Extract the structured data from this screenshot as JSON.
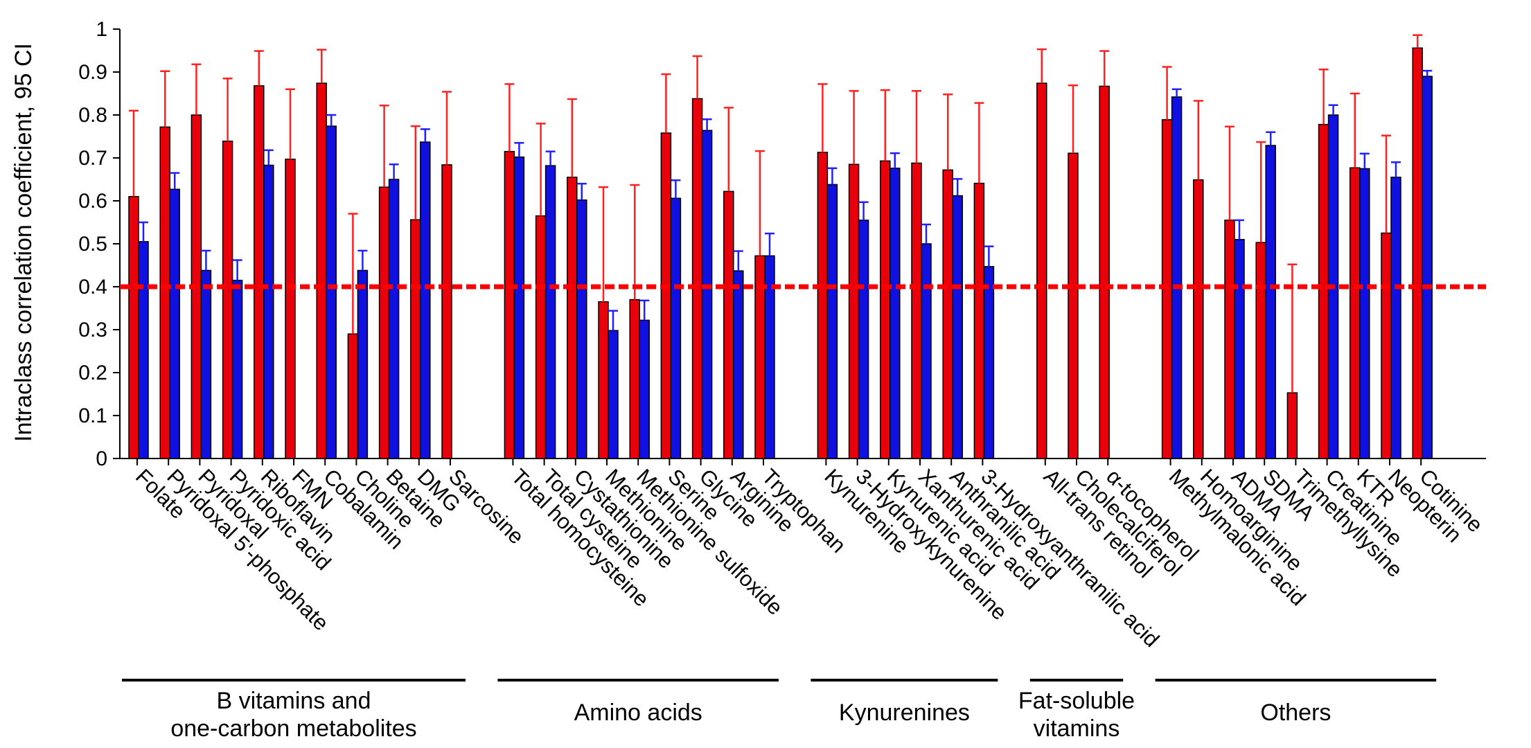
{
  "chart_data": {
    "type": "bar",
    "title": "",
    "ylabel": "Intraclass correlation coefficient, 95 CI",
    "xlabel": "",
    "ylim": [
      0,
      1
    ],
    "yticks": [
      "0",
      "0.1",
      "0.2",
      "0.3",
      "0.4",
      "0.5",
      "0.6",
      "0.7",
      "0.8",
      "0.9",
      "1"
    ],
    "grid": false,
    "legend": "none",
    "reference_line": {
      "y": 0.4,
      "color": "#ff0000",
      "style": "dashed"
    },
    "series_colors": {
      "red": "#e8000b",
      "blue": "#1010e0"
    },
    "errorbar_colors": {
      "red": "#ff2020",
      "blue": "#2020ff"
    },
    "groups": [
      {
        "label": [
          "B vitamins and",
          "one-carbon metabolites"
        ],
        "items": [
          {
            "name": "Folate",
            "red": [
              0.61,
              0.81
            ],
            "blue": [
              0.505,
              0.55
            ]
          },
          {
            "name": "Pyridoxal 5'-phosphate",
            "red": [
              0.772,
              0.902
            ],
            "blue": [
              0.627,
              0.665
            ]
          },
          {
            "name": "Pyridoxal",
            "red": [
              0.8,
              0.918
            ],
            "blue": [
              0.438,
              0.484
            ]
          },
          {
            "name": "Pyridoxic acid",
            "red": [
              0.739,
              0.885
            ],
            "blue": [
              0.415,
              0.462
            ]
          },
          {
            "name": "Riboflavin",
            "red": [
              0.868,
              0.949
            ],
            "blue": [
              0.683,
              0.718
            ]
          },
          {
            "name": "FMN",
            "red": [
              0.697,
              0.86
            ],
            "blue": null
          },
          {
            "name": "Cobalamin",
            "red": [
              0.874,
              0.952
            ],
            "blue": [
              0.774,
              0.8
            ]
          },
          {
            "name": "Choline",
            "red": [
              0.29,
              0.57
            ],
            "blue": [
              0.438,
              0.484
            ]
          },
          {
            "name": "Betaine",
            "red": [
              0.632,
              0.822
            ],
            "blue": [
              0.65,
              0.685
            ]
          },
          {
            "name": "DMG",
            "red": [
              0.556,
              0.774
            ],
            "blue": [
              0.737,
              0.767
            ]
          },
          {
            "name": "Sarcosine",
            "red": [
              0.684,
              0.854
            ],
            "blue": null
          }
        ]
      },
      {
        "label": [
          "Amino acids"
        ],
        "items": [
          {
            "name": "Total homocysteine",
            "red": [
              0.715,
              0.872
            ],
            "blue": [
              0.702,
              0.735
            ]
          },
          {
            "name": "Total cysteine",
            "red": [
              0.565,
              0.78
            ],
            "blue": [
              0.682,
              0.715
            ]
          },
          {
            "name": "Cystathionine",
            "red": [
              0.655,
              0.837
            ],
            "blue": [
              0.602,
              0.64
            ]
          },
          {
            "name": "Methionine",
            "red": [
              0.365,
              0.632
            ],
            "blue": [
              0.298,
              0.344
            ]
          },
          {
            "name": "Methionine sulfoxide",
            "red": [
              0.37,
              0.637
            ],
            "blue": [
              0.322,
              0.368
            ]
          },
          {
            "name": "Serine",
            "red": [
              0.758,
              0.895
            ],
            "blue": [
              0.606,
              0.648
            ]
          },
          {
            "name": "Glycine",
            "red": [
              0.838,
              0.937
            ],
            "blue": [
              0.764,
              0.79
            ]
          },
          {
            "name": "Arginine",
            "red": [
              0.622,
              0.817
            ],
            "blue": [
              0.437,
              0.483
            ]
          },
          {
            "name": "Tryptophan",
            "red": [
              0.472,
              0.716
            ],
            "blue": [
              0.472,
              0.524
            ]
          }
        ]
      },
      {
        "label": [
          "Kynurenines"
        ],
        "items": [
          {
            "name": "Kynurenine",
            "red": [
              0.713,
              0.872
            ],
            "blue": [
              0.638,
              0.676
            ]
          },
          {
            "name": "3-Hydroxykynurenine",
            "red": [
              0.685,
              0.856
            ],
            "blue": [
              0.555,
              0.597
            ]
          },
          {
            "name": "Kynurenic acid",
            "red": [
              0.693,
              0.858
            ],
            "blue": [
              0.676,
              0.711
            ]
          },
          {
            "name": "Xanthurenic acid",
            "red": [
              0.688,
              0.856
            ],
            "blue": [
              0.5,
              0.545
            ]
          },
          {
            "name": "Anthranilic acid",
            "red": [
              0.672,
              0.848
            ],
            "blue": [
              0.612,
              0.651
            ]
          },
          {
            "name": "3-Hydroxyanthranilic acid",
            "red": [
              0.641,
              0.828
            ],
            "blue": [
              0.447,
              0.494
            ]
          }
        ]
      },
      {
        "label": [
          "Fat-soluble",
          "vitamins"
        ],
        "items": [
          {
            "name": "All-trans retinol",
            "red": [
              0.874,
              0.953
            ],
            "blue": null
          },
          {
            "name": "Cholecalciferol",
            "red": [
              0.711,
              0.869
            ],
            "blue": null
          },
          {
            "name": "α-tocopherol",
            "red": [
              0.867,
              0.949
            ],
            "blue": null
          }
        ]
      },
      {
        "label": [
          "Others"
        ],
        "items": [
          {
            "name": "Methylmalonic acid",
            "red": [
              0.789,
              0.912
            ],
            "blue": [
              0.842,
              0.86
            ]
          },
          {
            "name": "Homoarginine",
            "red": [
              0.649,
              0.833
            ],
            "blue": null
          },
          {
            "name": "ADMA",
            "red": [
              0.555,
              0.773
            ],
            "blue": [
              0.51,
              0.555
            ]
          },
          {
            "name": "SDMA",
            "red": [
              0.503,
              0.737
            ],
            "blue": [
              0.729,
              0.76
            ]
          },
          {
            "name": "Trimethyllysine",
            "red": [
              0.153,
              0.452
            ],
            "blue": null
          },
          {
            "name": "Creatinine",
            "red": [
              0.778,
              0.906
            ],
            "blue": [
              0.8,
              0.823
            ]
          },
          {
            "name": "KTR",
            "red": [
              0.677,
              0.85
            ],
            "blue": [
              0.675,
              0.71
            ]
          },
          {
            "name": "Neopterin",
            "red": [
              0.525,
              0.752
            ],
            "blue": [
              0.655,
              0.69
            ]
          },
          {
            "name": "Cotinine",
            "red": [
              0.956,
              0.986
            ],
            "blue": [
              0.89,
              0.903
            ]
          }
        ]
      }
    ]
  }
}
